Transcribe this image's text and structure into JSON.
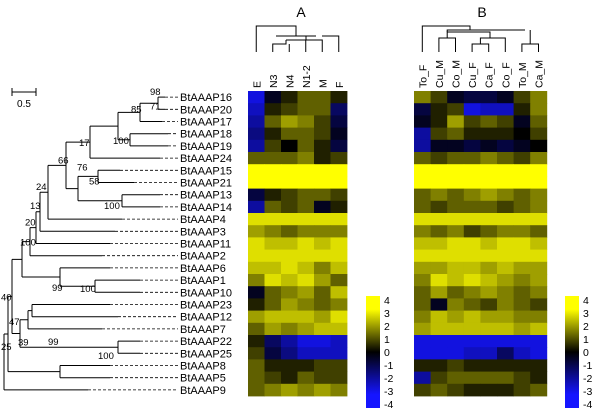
{
  "panels": {
    "a": {
      "label": "A",
      "columns": [
        "E",
        "N3",
        "N4",
        "N1-2",
        "M",
        "F"
      ]
    },
    "b": {
      "label": "B",
      "columns": [
        "To_F",
        "Cu_M",
        "Co_M",
        "Cu_F",
        "Ca_F",
        "Co_F",
        "To_M",
        "Ca_M"
      ]
    }
  },
  "scale_bar": {
    "label": "0.5"
  },
  "colorbar": {
    "colors": {
      "neg": "#1515ff",
      "mid": "#000000",
      "pos": "#ffff00"
    },
    "ticks": [
      "4",
      "3",
      "2",
      "1",
      "0",
      "-1",
      "-2",
      "-3",
      "-4"
    ]
  },
  "tree": {
    "genes": [
      "BtAAAP16",
      "BtAAAP20",
      "BtAAAP17",
      "BtAAAP18",
      "BtAAAP19",
      "BtAAAP24",
      "BtAAAP15",
      "BtAAAP21",
      "BtAAAP13",
      "BtAAAP14",
      "BtAAAP4",
      "BtAAAP3",
      "BtAAAP11",
      "BtAAAP2",
      "BtAAAP6",
      "BtAAAP1",
      "BtAAAP10",
      "BtAAAP23",
      "BtAAAP12",
      "BtAAAP7",
      "BtAAAP22",
      "BtAAAP25",
      "BtAAAP8",
      "BtAAAP5",
      "BtAAAP9"
    ],
    "bootstrap": [
      "98",
      "71",
      "85",
      "100",
      "17",
      "76",
      "58",
      "66",
      "100",
      "24",
      "13",
      "20",
      "100",
      "99",
      "100",
      "40",
      "47",
      "39",
      "99",
      "100",
      "25"
    ]
  },
  "heatmap_a": [
    [
      -3.5,
      -0.5,
      0.5,
      1.5,
      1.5,
      0.5
    ],
    [
      -3,
      0.5,
      1,
      1.5,
      1.5,
      -1.5
    ],
    [
      -2.5,
      1.5,
      2.5,
      2,
      1,
      -1
    ],
    [
      -2,
      0.5,
      1.5,
      1.5,
      1,
      -0.5
    ],
    [
      -2.5,
      1,
      0,
      1.5,
      0.5,
      -1
    ],
    [
      1.5,
      1.5,
      1.5,
      2,
      0.5,
      1
    ],
    [
      4,
      4,
      4,
      4,
      4,
      4
    ],
    [
      4,
      4,
      4,
      4,
      4,
      4
    ],
    [
      -1,
      0.5,
      1,
      1.5,
      1.5,
      1
    ],
    [
      -2.5,
      1.5,
      1,
      1.5,
      -0.5,
      0.5
    ],
    [
      3.5,
      3.5,
      3.5,
      3.5,
      3.5,
      3.5
    ],
    [
      2.5,
      2,
      1.5,
      2,
      2,
      2
    ],
    [
      3.5,
      3,
      3,
      3.5,
      3,
      3.5
    ],
    [
      3.5,
      3.5,
      3.5,
      3.5,
      3.5,
      3.5
    ],
    [
      3,
      3,
      3.5,
      3,
      2,
      3
    ],
    [
      2,
      3.5,
      3,
      3.5,
      2.5,
      1.5
    ],
    [
      -0.5,
      1.5,
      2,
      2.5,
      1.5,
      3
    ],
    [
      0.5,
      1.5,
      2.5,
      2,
      1.5,
      2
    ],
    [
      2.5,
      3,
      3,
      3,
      2.5,
      3.5
    ],
    [
      1.5,
      2.5,
      2,
      2.5,
      3,
      3
    ],
    [
      0.5,
      -1.5,
      -2.5,
      -3.5,
      -3.5,
      -3
    ],
    [
      1,
      -1,
      -2,
      -3,
      -3,
      -3
    ],
    [
      1.5,
      0.5,
      0.5,
      0.5,
      1,
      1
    ],
    [
      1.5,
      1,
      0.5,
      1.5,
      1,
      1
    ],
    [
      1.5,
      2,
      2.5,
      2,
      2.5,
      2
    ]
  ],
  "heatmap_b": [
    [
      2,
      1,
      -0.5,
      -1,
      -1,
      -0.5,
      1,
      2
    ],
    [
      -1,
      0.5,
      1,
      -3.5,
      -3,
      -3,
      0.5,
      2
    ],
    [
      -0.5,
      0.5,
      2.5,
      1,
      1.5,
      1,
      -0.5,
      1.5
    ],
    [
      -2.5,
      1,
      1.5,
      0.5,
      0.5,
      0.5,
      0,
      1
    ],
    [
      -2.5,
      -0.5,
      -0.5,
      -1,
      -0.5,
      -1,
      -0.5,
      0
    ],
    [
      1.5,
      1,
      1.5,
      1.5,
      2,
      1.5,
      1,
      2
    ],
    [
      4,
      4,
      4,
      4,
      4,
      4,
      4,
      4
    ],
    [
      4,
      4,
      4,
      4,
      4,
      4,
      4,
      4
    ],
    [
      1.5,
      2,
      1.5,
      2,
      2.5,
      2,
      1.5,
      2
    ],
    [
      1.5,
      1,
      1.5,
      1.5,
      1.5,
      1,
      1.5,
      2
    ],
    [
      3.5,
      3.5,
      3.5,
      3.5,
      3.5,
      3.5,
      3.5,
      3.5
    ],
    [
      2,
      1.5,
      2,
      1,
      1.5,
      2,
      2,
      1.5
    ],
    [
      3,
      3,
      3.5,
      3.5,
      3,
      3.5,
      3.5,
      3
    ],
    [
      3.5,
      3.5,
      3.5,
      3.5,
      3.5,
      3.5,
      3.5,
      3.5
    ],
    [
      2.5,
      2.5,
      3,
      3,
      2.5,
      3,
      2.5,
      2.5
    ],
    [
      2,
      3.5,
      3,
      3.5,
      3,
      2.5,
      2,
      2.5
    ],
    [
      1.5,
      2.5,
      1.5,
      2,
      2.5,
      2,
      1.5,
      2
    ],
    [
      1.5,
      -0.5,
      2,
      1.5,
      1,
      2,
      1.5,
      1
    ],
    [
      2,
      3,
      2.5,
      3,
      2.5,
      2.5,
      2,
      2
    ],
    [
      2.5,
      3,
      3,
      3,
      3,
      3,
      2.5,
      3
    ],
    [
      -3.5,
      -3.5,
      -3.5,
      -3.5,
      -3.5,
      -3.5,
      -3.5,
      -3.5
    ],
    [
      -3.5,
      -3.5,
      -3.5,
      -3,
      -3,
      -1.5,
      -3,
      -3.5
    ],
    [
      0.5,
      0.5,
      1,
      0.5,
      0.5,
      0.5,
      0.5,
      0.5
    ],
    [
      -2.5,
      1,
      1.5,
      1.5,
      1.5,
      1.5,
      1,
      0.5
    ],
    [
      1,
      1.5,
      1,
      0.5,
      0.5,
      0.5,
      1,
      1.5
    ]
  ]
}
